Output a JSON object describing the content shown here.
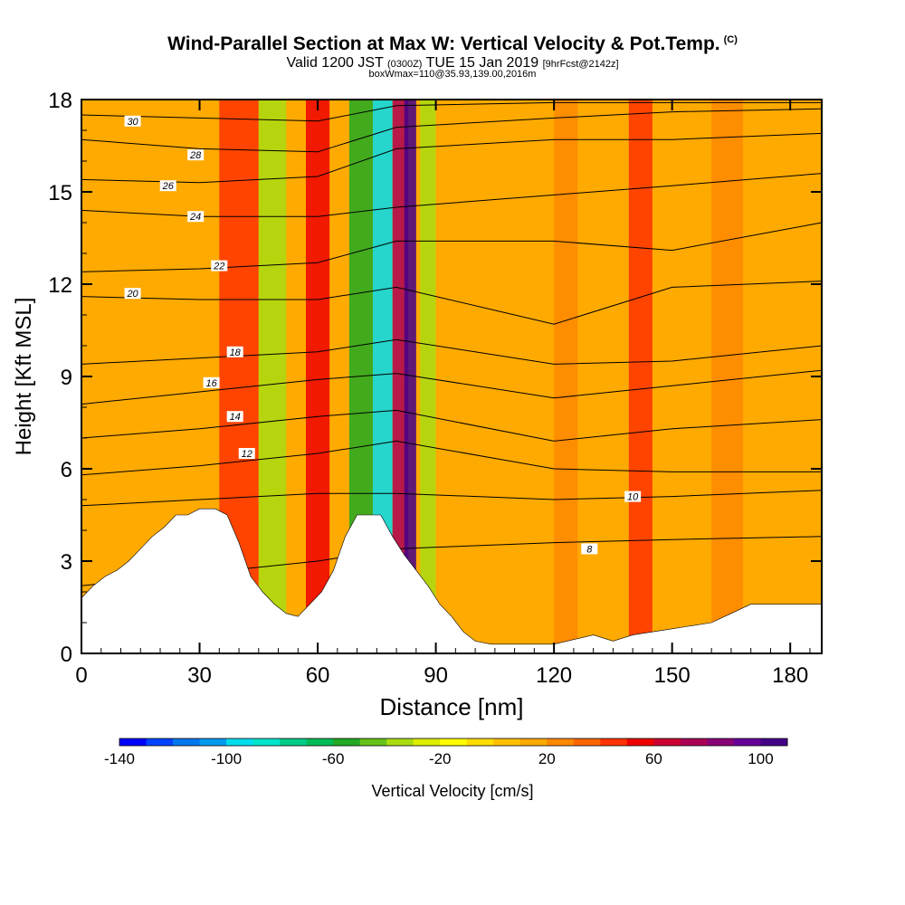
{
  "title": {
    "main": "Wind-Parallel Section at Max W: Vertical Velocity & Pot.Temp.",
    "copyright": "(C)",
    "line2_a": "Valid 1200 JST",
    "line2_b": "(0300Z)",
    "line2_c": "TUE 15 Jan 2019",
    "line2_d": "[9hrFcst@2142z]",
    "line3": "boxWmax=110@35.93,139.00,2016m"
  },
  "chart_data": {
    "type": "heatmap",
    "xlabel": "Distance [nm]",
    "ylabel": "Height [Kft MSL]",
    "xlim": [
      0,
      188
    ],
    "ylim": [
      0,
      18
    ],
    "xticks": [
      0,
      30,
      60,
      90,
      120,
      150,
      180
    ],
    "yticks": [
      0,
      3,
      6,
      9,
      12,
      15,
      18
    ],
    "colorbar": {
      "label": "Vertical Velocity [cm/s]",
      "min": -140,
      "max": 110,
      "step": 10,
      "tick_values": [
        -140,
        -100,
        -60,
        -20,
        20,
        60,
        100
      ],
      "colors": [
        "#0000ff",
        "#0044ff",
        "#0077ee",
        "#0099ee",
        "#00ddee",
        "#00e5cc",
        "#00cc88",
        "#00bb55",
        "#22aa22",
        "#66c218",
        "#aadd11",
        "#ddee00",
        "#ffff00",
        "#ffdd00",
        "#ffc000",
        "#ffaa00",
        "#ff8800",
        "#ff6600",
        "#ff3300",
        "#ee0000",
        "#cc0033",
        "#aa0055",
        "#880077",
        "#660099",
        "#440088"
      ]
    },
    "vertical_velocity_bands": [
      {
        "x": 35,
        "w": 10,
        "value": 40
      },
      {
        "x": 45,
        "w": 7,
        "value": -40
      },
      {
        "x": 57,
        "w": 6,
        "value": 50
      },
      {
        "x": 68,
        "w": 6,
        "value": -60
      },
      {
        "x": 74,
        "w": 5,
        "value": -100
      },
      {
        "x": 79,
        "w": 4,
        "value": 70
      },
      {
        "x": 82,
        "w": 3,
        "value": 100
      },
      {
        "x": 86,
        "w": 4,
        "value": -40
      },
      {
        "x": 120,
        "w": 6,
        "value": 20
      },
      {
        "x": 139,
        "w": 6,
        "value": 40
      },
      {
        "x": 160,
        "w": 8,
        "value": 20
      }
    ],
    "terrain_profile": {
      "x": [
        0,
        3,
        6,
        9,
        12,
        15,
        18,
        21,
        24,
        27,
        30,
        34,
        37,
        40,
        43,
        46,
        49,
        52,
        55,
        58,
        61,
        64,
        67,
        70,
        73,
        76,
        79,
        82,
        85,
        88,
        91,
        94,
        97,
        100,
        104,
        120,
        130,
        135,
        140,
        150,
        160,
        165,
        170,
        188
      ],
      "y": [
        1.8,
        2.2,
        2.5,
        2.7,
        3.0,
        3.4,
        3.8,
        4.1,
        4.5,
        4.5,
        4.7,
        4.7,
        4.5,
        3.6,
        2.5,
        2.0,
        1.6,
        1.3,
        1.2,
        1.6,
        2.0,
        2.7,
        3.8,
        4.5,
        4.5,
        4.5,
        3.8,
        3.2,
        2.7,
        2.2,
        1.6,
        1.2,
        0.7,
        0.4,
        0.3,
        0.3,
        0.6,
        0.4,
        0.6,
        0.8,
        1.0,
        1.3,
        1.6,
        1.6
      ]
    },
    "potential_temperature_contours": [
      {
        "label": "8",
        "label_x": 129,
        "label_y": 3.4,
        "y": [
          2.2,
          2.6,
          3.0,
          3.4,
          3.6,
          3.7,
          3.8
        ]
      },
      {
        "label": "10",
        "label_x": 140,
        "label_y": 5.1,
        "y": [
          4.8,
          5.0,
          5.2,
          5.2,
          5.0,
          5.1,
          5.3
        ]
      },
      {
        "label": "12",
        "label_x": 42,
        "label_y": 6.5,
        "y": [
          5.8,
          6.1,
          6.5,
          6.9,
          6.0,
          5.9,
          5.9
        ]
      },
      {
        "label": "14",
        "label_x": 39,
        "label_y": 7.7,
        "y": [
          7.0,
          7.3,
          7.7,
          7.9,
          6.9,
          7.3,
          7.6
        ]
      },
      {
        "label": "16",
        "label_x": 33,
        "label_y": 8.8,
        "y": [
          8.1,
          8.5,
          8.9,
          9.1,
          8.3,
          8.7,
          9.2
        ]
      },
      {
        "label": "18",
        "label_x": 39,
        "label_y": 9.8,
        "y": [
          9.4,
          9.6,
          9.8,
          10.2,
          9.4,
          9.5,
          10.0
        ]
      },
      {
        "label": "20",
        "label_x": 13,
        "label_y": 11.7,
        "y": [
          11.6,
          11.5,
          11.5,
          11.9,
          10.7,
          11.9,
          12.1
        ]
      },
      {
        "label": "22",
        "label_x": 35,
        "label_y": 12.6,
        "y": [
          12.4,
          12.5,
          12.7,
          13.4,
          13.4,
          13.1,
          14.0
        ]
      },
      {
        "label": "24",
        "label_x": 29,
        "label_y": 14.2,
        "y": [
          14.4,
          14.2,
          14.2,
          14.5,
          14.9,
          15.2,
          15.6
        ]
      },
      {
        "label": "26",
        "label_x": 22,
        "label_y": 15.2,
        "y": [
          15.4,
          15.3,
          15.5,
          16.4,
          16.7,
          16.7,
          16.9
        ]
      },
      {
        "label": "28",
        "label_x": 29,
        "label_y": 16.2,
        "y": [
          16.7,
          16.4,
          16.3,
          17.1,
          17.4,
          17.6,
          17.7
        ]
      },
      {
        "label": "30",
        "label_x": 13,
        "label_y": 17.3,
        "y": [
          17.5,
          17.4,
          17.3,
          17.8,
          17.9,
          17.9,
          17.9
        ]
      }
    ],
    "contour_x": [
      0,
      30,
      60,
      80,
      120,
      150,
      188
    ]
  }
}
